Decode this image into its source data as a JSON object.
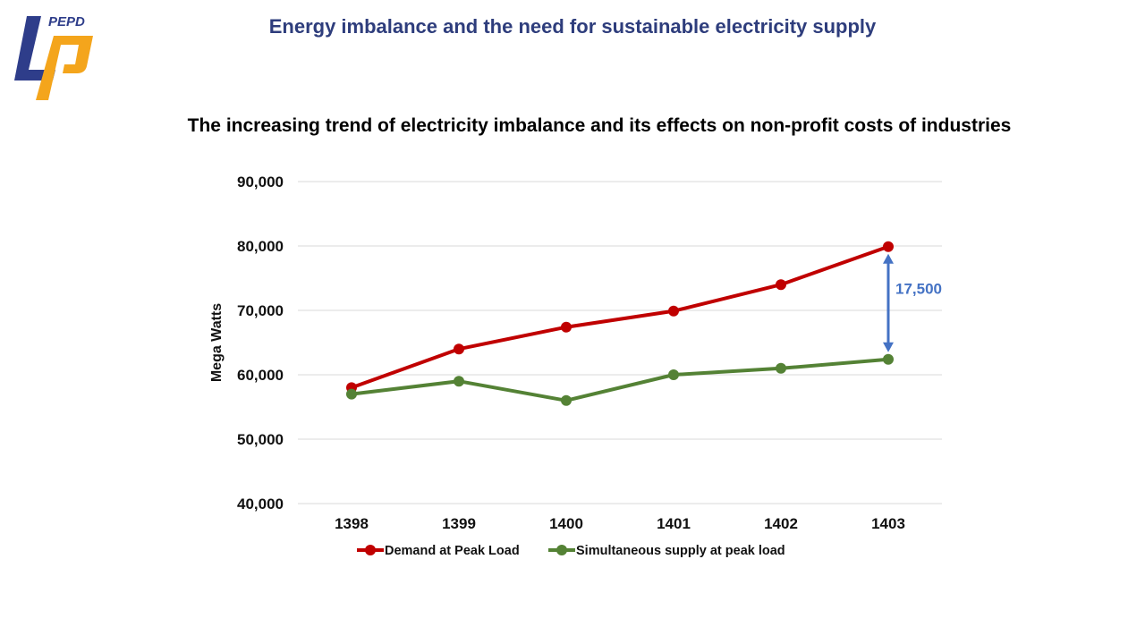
{
  "header": {
    "logo_text": "PEPD",
    "slide_title": "Energy imbalance and the need for sustainable electricity supply"
  },
  "colors": {
    "title": "#2e3d7c",
    "logo_blue": "#2e3d8a",
    "logo_orange": "#f4a51c",
    "annotation": "#4472c4",
    "gridline": "#d9d9d9"
  },
  "chart_data": {
    "type": "line",
    "title": "The increasing trend of electricity imbalance and its effects on non-profit costs of industries",
    "xlabel": "",
    "ylabel": "Mega Watts",
    "categories": [
      "1398",
      "1399",
      "1400",
      "1401",
      "1402",
      "1403"
    ],
    "ylim": [
      40000,
      90000
    ],
    "yticks": [
      40000,
      50000,
      60000,
      70000,
      80000,
      90000
    ],
    "ytick_labels": [
      "40,000",
      "50,000",
      "60,000",
      "70,000",
      "80,000",
      "90,000"
    ],
    "grid": true,
    "legend_position": "bottom",
    "series": [
      {
        "name": "Demand at Peak Load",
        "color": "#c00000",
        "values": [
          58000,
          64000,
          67400,
          69900,
          74000,
          79900
        ]
      },
      {
        "name": "Simultaneous supply at peak load",
        "color": "#548235",
        "values": [
          57000,
          59000,
          56000,
          60000,
          61000,
          62400
        ]
      }
    ],
    "annotations": [
      {
        "text": "17,500",
        "category": "1403",
        "from_series": "Simultaneous supply at peak load",
        "to_series": "Demand at Peak Load",
        "type": "double-arrow"
      }
    ]
  }
}
